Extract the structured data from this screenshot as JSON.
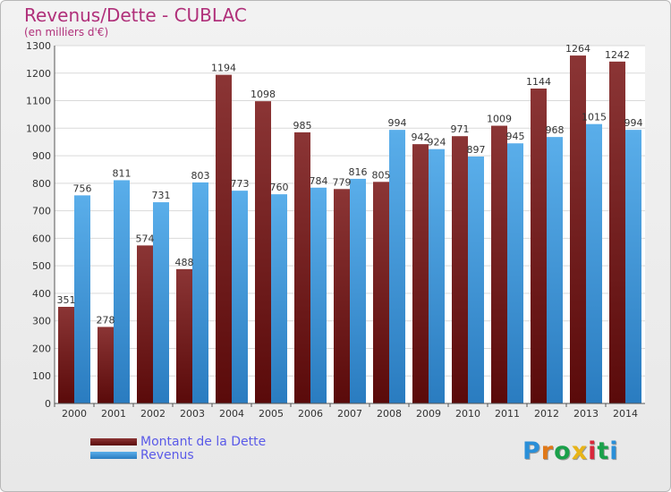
{
  "chart_data": {
    "type": "bar",
    "title": "Revenus/Dette - CUBLAC",
    "subtitle": "(en milliers d'€)",
    "categories": [
      "2000",
      "2001",
      "2002",
      "2003",
      "2004",
      "2005",
      "2006",
      "2007",
      "2008",
      "2009",
      "2010",
      "2011",
      "2012",
      "2013",
      "2014"
    ],
    "series": [
      {
        "name": "Montant de la Dette",
        "values": [
          351,
          278,
          574,
          488,
          1194,
          1098,
          985,
          779,
          805,
          942,
          971,
          1009,
          1144,
          1264,
          1242
        ]
      },
      {
        "name": "Revenus",
        "values": [
          756,
          811,
          731,
          803,
          773,
          760,
          784,
          816,
          994,
          924,
          897,
          945,
          968,
          1015,
          994
        ]
      }
    ],
    "ylim": [
      0,
      1300
    ],
    "yticks": [
      0,
      100,
      200,
      300,
      400,
      500,
      600,
      700,
      800,
      900,
      1000,
      1100,
      1200,
      1300
    ],
    "grid": true,
    "legend_position": "bottom-left"
  },
  "colors": {
    "debt_top": "#8b3535",
    "debt_bottom": "#5a0a0a",
    "revenue_top": "#5aaeea",
    "revenue_bottom": "#2a7cc0",
    "title": "#b0307a",
    "legend_text": "#5a5ae8"
  },
  "logo": {
    "text": "Proxiti"
  }
}
